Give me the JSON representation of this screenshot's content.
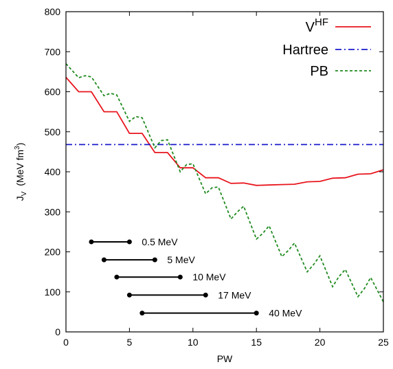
{
  "chart_data": {
    "type": "line",
    "xlabel": "PW",
    "ylabel": {
      "main": "J",
      "sub": "V",
      "unit_text": "(MeV fm",
      "unit_sup": "3",
      "unit_close": ")"
    },
    "xlim": [
      0,
      25
    ],
    "ylim": [
      0,
      800
    ],
    "xticks": [
      0,
      5,
      10,
      15,
      20,
      25
    ],
    "yticks": [
      0,
      100,
      200,
      300,
      400,
      500,
      600,
      700,
      800
    ],
    "grid": false,
    "legend_position": "top-right",
    "series": [
      {
        "name": "V",
        "name_sup": "HF",
        "color": "#e8141c",
        "style": "solid",
        "points": [
          [
            0,
            636
          ],
          [
            1,
            600
          ],
          [
            2,
            600
          ],
          [
            3,
            550
          ],
          [
            4,
            550
          ],
          [
            5,
            496
          ],
          [
            6,
            496
          ],
          [
            7,
            448
          ],
          [
            8,
            448
          ],
          [
            9,
            410
          ],
          [
            10,
            410
          ],
          [
            11,
            385
          ],
          [
            12,
            385
          ],
          [
            13,
            371
          ],
          [
            14,
            372
          ],
          [
            15,
            366
          ],
          [
            16,
            367
          ],
          [
            17,
            368
          ],
          [
            18,
            369
          ],
          [
            19,
            375
          ],
          [
            20,
            376
          ],
          [
            21,
            384
          ],
          [
            22,
            385
          ],
          [
            23,
            394
          ],
          [
            24,
            395
          ],
          [
            25,
            405
          ]
        ]
      },
      {
        "name": "Hartree",
        "color": "#1a1acc",
        "style": "dashdot",
        "points": [
          [
            0,
            468
          ],
          [
            25,
            468
          ]
        ]
      },
      {
        "name": "PB",
        "color": "#1f8a1f",
        "style": "dotted",
        "points": [
          [
            0,
            670
          ],
          [
            1,
            635
          ],
          [
            1.5,
            640
          ],
          [
            2,
            637
          ],
          [
            3,
            590
          ],
          [
            3.5,
            596
          ],
          [
            4,
            592
          ],
          [
            5,
            526
          ],
          [
            5.5,
            538
          ],
          [
            6,
            535
          ],
          [
            7,
            460
          ],
          [
            7.5,
            478
          ],
          [
            8,
            480
          ],
          [
            9,
            400
          ],
          [
            9.5,
            418
          ],
          [
            10,
            420
          ],
          [
            11,
            345
          ],
          [
            11.5,
            360
          ],
          [
            12,
            362
          ],
          [
            13,
            282
          ],
          [
            13.5,
            300
          ],
          [
            14,
            314
          ],
          [
            15,
            232
          ],
          [
            15.5,
            246
          ],
          [
            16,
            265
          ],
          [
            17,
            188
          ],
          [
            17.5,
            203
          ],
          [
            18,
            222
          ],
          [
            19,
            150
          ],
          [
            19.5,
            168
          ],
          [
            20,
            190
          ],
          [
            21,
            113
          ],
          [
            21.5,
            138
          ],
          [
            22,
            156
          ],
          [
            23,
            88
          ],
          [
            23.5,
            108
          ],
          [
            24,
            136
          ],
          [
            25,
            75
          ]
        ]
      }
    ],
    "energy_ranges": [
      {
        "label": "0.5 MeV",
        "x_start": 2,
        "x_end": 5,
        "y": 225
      },
      {
        "label": "5 MeV",
        "x_start": 3,
        "x_end": 7,
        "y": 180
      },
      {
        "label": "10 MeV",
        "x_start": 4,
        "x_end": 9,
        "y": 137
      },
      {
        "label": "17 MeV",
        "x_start": 5,
        "x_end": 11,
        "y": 92
      },
      {
        "label": "40 MeV",
        "x_start": 6,
        "x_end": 15,
        "y": 47
      }
    ]
  }
}
